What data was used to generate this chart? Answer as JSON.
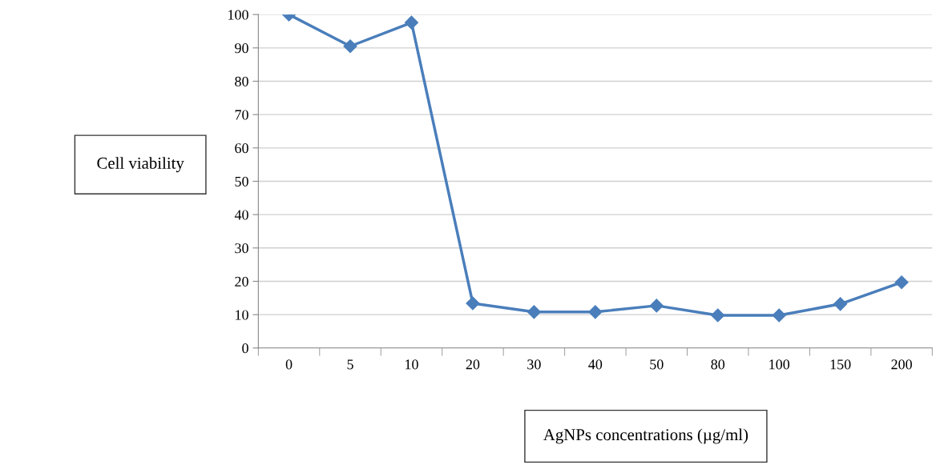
{
  "chart_data": {
    "type": "line",
    "xlabel": "AgNPs concentrations (µg/ml)",
    "ylabel": "Cell viability",
    "categories": [
      "0",
      "5",
      "10",
      "20",
      "30",
      "40",
      "50",
      "80",
      "100",
      "150",
      "200"
    ],
    "series": [
      {
        "color": "#4a7ebb",
        "values": [
          100,
          90.5,
          97.6,
          13.4,
          10.8,
          10.8,
          12.7,
          9.8,
          9.8,
          13.2,
          19.7
        ]
      }
    ],
    "ylim": [
      0,
      100
    ],
    "yticks": [
      0,
      10,
      20,
      30,
      40,
      50,
      60,
      70,
      80,
      90,
      100
    ],
    "grid": "y",
    "marker": "diamond",
    "line_style": "solid"
  }
}
